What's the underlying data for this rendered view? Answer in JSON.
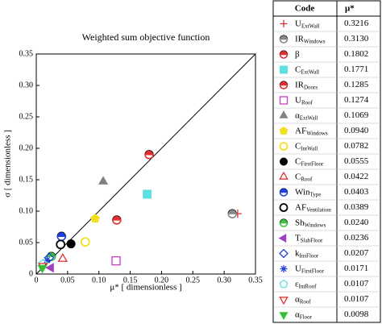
{
  "chart_data": {
    "type": "scatter",
    "title": "Weighted sum objective function",
    "x_label": "μ* [ dimensionless ]",
    "y_label": "σ [ dimensionless ]",
    "xlim": [
      0,
      0.35
    ],
    "ylim": [
      0,
      0.35
    ],
    "xticks": [
      0,
      0.05,
      {
        "value": 0.1,
        "label": "0.10"
      },
      0.15,
      {
        "value": 0.2,
        "label": "0.20"
      },
      0.25,
      {
        "value": 0.3,
        "label": "0.30"
      },
      0.35
    ],
    "yticks": [
      0,
      0.05,
      {
        "value": 0.1,
        "label": "0.10"
      },
      0.15,
      {
        "value": 0.2,
        "label": "0.20"
      },
      0.25,
      {
        "value": 0.3,
        "label": "0.30"
      },
      0.35
    ],
    "legend_headers": [
      "Code",
      "μ*"
    ],
    "series": [
      {
        "name": "U",
        "subscript": "ExtWall",
        "color": "#e03030",
        "marker": "plus",
        "x": 0.3216,
        "y": 0.096
      },
      {
        "name": "IR",
        "subscript": "Windows",
        "color": "#888888",
        "marker": "half-circle",
        "x": 0.313,
        "y": 0.096
      },
      {
        "name": "β",
        "subscript": "",
        "color": "#e03030",
        "marker": "half-circle",
        "x": 0.1802,
        "y": 0.19
      },
      {
        "name": "C",
        "subscript": "ExtWall",
        "color": "#5fe0e0",
        "marker": "square",
        "x": 0.1771,
        "y": 0.127
      },
      {
        "name": "IR",
        "subscript": "Doors",
        "color": "#e03030",
        "marker": "half-circle",
        "x": 0.1285,
        "y": 0.086
      },
      {
        "name": "U",
        "subscript": "Roof",
        "color": "#c040c0",
        "marker": "open-square",
        "x": 0.1274,
        "y": 0.021
      },
      {
        "name": "α",
        "subscript": "ExtWall",
        "color": "#808080",
        "marker": "triangle",
        "x": 0.1069,
        "y": 0.147
      },
      {
        "name": "AF",
        "subscript": "Windows",
        "color": "#f0e020",
        "marker": "pentagon",
        "x": 0.094,
        "y": 0.088
      },
      {
        "name": "C",
        "subscript": "IntWall",
        "color": "#f0e020",
        "marker": "open-circle",
        "x": 0.0782,
        "y": 0.051
      },
      {
        "name": "C",
        "subscript": "FirstFloor",
        "color": "#000000",
        "marker": "circle",
        "x": 0.0555,
        "y": 0.048
      },
      {
        "name": "C",
        "subscript": "Roof",
        "color": "#e03030",
        "marker": "open-triangle",
        "x": 0.0422,
        "y": 0.024
      },
      {
        "name": "Win",
        "subscript": "Type",
        "color": "#2040e0",
        "marker": "half-circle",
        "x": 0.0403,
        "y": 0.06
      },
      {
        "name": "AF",
        "subscript": "Ventilation",
        "color": "#000000",
        "marker": "open-circle",
        "x": 0.0389,
        "y": 0.047
      },
      {
        "name": "Sh",
        "subscript": "Windows",
        "color": "#40c040",
        "marker": "half-circle",
        "x": 0.024,
        "y": 0.028
      },
      {
        "name": "T",
        "subscript": "SlabFloor",
        "color": "#a040c0",
        "marker": "triangle-left",
        "x": 0.0236,
        "y": 0.01
      },
      {
        "name": "k",
        "subscript": "InsFloor",
        "color": "#2040e0",
        "marker": "open-diamond",
        "x": 0.0207,
        "y": 0.026
      },
      {
        "name": "U",
        "subscript": "FirstFloor",
        "color": "#2040e0",
        "marker": "asterisk",
        "x": 0.0171,
        "y": 0.022
      },
      {
        "name": "ε",
        "subscript": "IntRoof",
        "color": "#5fe0e0",
        "marker": "open-pentagon",
        "x": 0.0107,
        "y": 0.016
      },
      {
        "name": "α",
        "subscript": "Roof",
        "color": "#e03030",
        "marker": "open-triangle-down",
        "x": 0.0107,
        "y": 0.013
      },
      {
        "name": "α",
        "subscript": "Floor",
        "color": "#30c030",
        "marker": "triangle-down",
        "x": 0.0098,
        "y": 0.01
      }
    ],
    "value_labels": [
      "0.3216",
      "0.3130",
      "0.1802",
      "0.1771",
      "0.1285",
      "0.1274",
      "0.1069",
      "0.0940",
      "0.0782",
      "0.0555",
      "0.0422",
      "0.0403",
      "0.0389",
      "0.0240",
      "0.0236",
      "0.0207",
      "0.0171",
      "0.0107",
      "0.0107",
      "0.0098"
    ]
  }
}
